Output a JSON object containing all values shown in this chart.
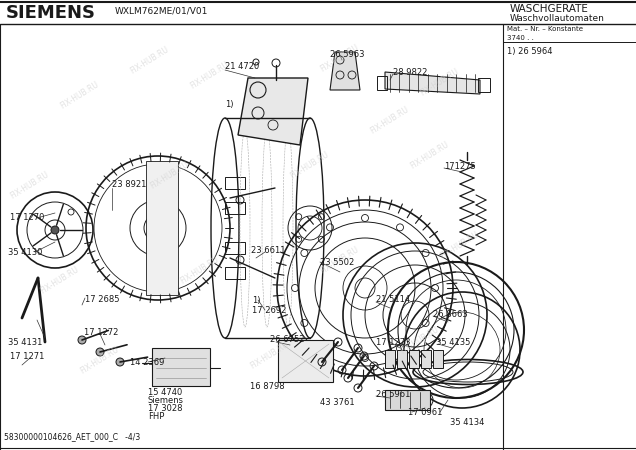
{
  "title_left": "SIEMENS",
  "model": "WXLM762ME/01–V01",
  "title_right1": "WASCHGERÄTE",
  "title_right2": "Waschvollautomaten",
  "mat_label": "Mat. – Nr. – Konstante",
  "mat_value": "3740 . .",
  "part_ref": "1) 26 5964",
  "bottom_code": "58300000104626_AET_000_C   -4/3",
  "watermark": "FIX-HUB.RU",
  "bg_color": "#ffffff",
  "lc": "#1a1a1a",
  "gray": "#888888",
  "lightgray": "#cccccc",
  "fig_w": 6.36,
  "fig_h": 4.5,
  "dpi": 100
}
